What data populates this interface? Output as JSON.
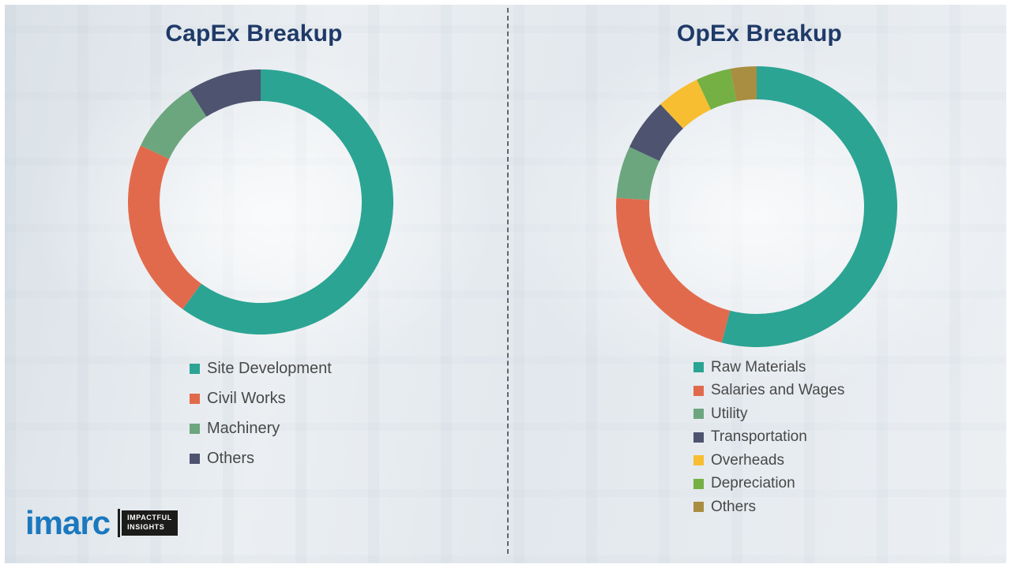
{
  "chart_data": [
    {
      "type": "pie",
      "subtype": "donut",
      "title": "CapEx Breakup",
      "legend_position": "bottom",
      "values_are_percent_estimates": true,
      "items": [
        {
          "label": "Site Development",
          "value": 60,
          "color": "#2BA493"
        },
        {
          "label": "Civil Works",
          "value": 22,
          "color": "#E26A4C"
        },
        {
          "label": "Machinery",
          "value": 9,
          "color": "#6CA67E"
        },
        {
          "label": "Others",
          "value": 9,
          "color": "#4E5370"
        }
      ]
    },
    {
      "type": "pie",
      "subtype": "donut",
      "title": "OpEx Breakup",
      "legend_position": "bottom",
      "values_are_percent_estimates": true,
      "items": [
        {
          "label": "Raw Materials",
          "value": 54,
          "color": "#2BA493"
        },
        {
          "label": "Salaries and Wages",
          "value": 22,
          "color": "#E26A4C"
        },
        {
          "label": "Utility",
          "value": 6,
          "color": "#6CA67E"
        },
        {
          "label": "Transportation",
          "value": 6,
          "color": "#4E5370"
        },
        {
          "label": "Overheads",
          "value": 5,
          "color": "#F7BE31"
        },
        {
          "label": "Depreciation",
          "value": 4,
          "color": "#74B043"
        },
        {
          "label": "Others",
          "value": 3,
          "color": "#A98E42"
        }
      ]
    }
  ],
  "logo": {
    "brand": "imarc",
    "tagline": [
      "IMPACTFUL",
      "INSIGHTS"
    ]
  }
}
